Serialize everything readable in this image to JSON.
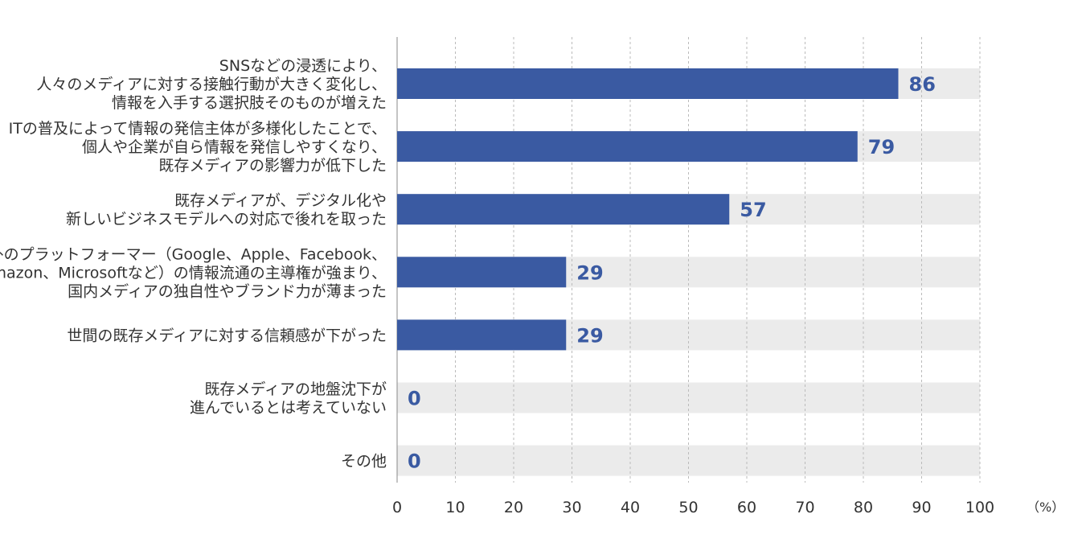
{
  "chart_data": {
    "type": "bar",
    "orientation": "horizontal",
    "categories": [
      [
        "SNSなどの浸透により、",
        "人々のメディアに対する接触行動が大きく変化し、",
        "情報を入手する選択肢そのものが増えた"
      ],
      [
        "ITの普及によって情報の発信主体が多様化したことで、",
        "個人や企業が自ら情報を発信しやすくなり、",
        "既存メディアの影響力が低下した"
      ],
      [
        "既存メディアが、デジタル化や",
        "新しいビジネスモデルへの対応で後れを取った"
      ],
      [
        "海外のプラットフォーマー（Google、Apple、Facebook、",
        "Amazon、Microsoftなど）の情報流通の主導権が強まり、",
        "国内メディアの独自性やブランド力が薄まった"
      ],
      [
        "世間の既存メディアに対する信頼感が下がった"
      ],
      [
        "既存メディアの地盤沈下が",
        "進んでいるとは考えていない"
      ],
      [
        "その他"
      ]
    ],
    "values": [
      86,
      79,
      57,
      29,
      29,
      0,
      0
    ],
    "xlim": [
      0,
      100
    ],
    "xticks": [
      0,
      10,
      20,
      30,
      40,
      50,
      60,
      70,
      80,
      90,
      100
    ],
    "unit": "（%）",
    "grid": true,
    "colors": {
      "bar": "#3a5aa2",
      "track": "#ebebeb",
      "value_text": "#3a5aa2",
      "grid": "#bbbbbb"
    }
  }
}
